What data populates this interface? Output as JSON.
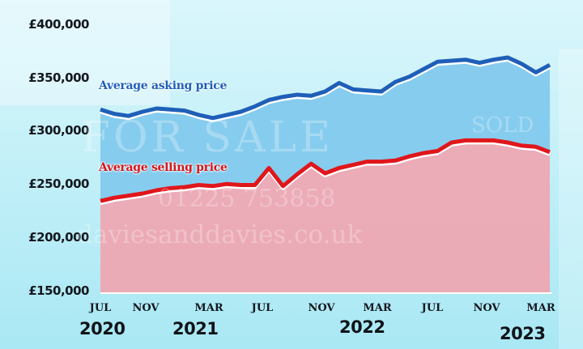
{
  "chart_data": {
    "type": "area",
    "title": "",
    "xlabel": "",
    "ylabel": "",
    "ylim": [
      150000,
      400000
    ],
    "yticks": [
      "£400,000",
      "£350,000",
      "£300,000",
      "£250,000",
      "£200,000",
      "£150,000"
    ],
    "ytick_values": [
      400000,
      350000,
      300000,
      250000,
      200000,
      150000
    ],
    "xticks": [
      {
        "label": "JUL",
        "index": 0
      },
      {
        "label": "NOV",
        "index": 4
      },
      {
        "label": "MAR",
        "index": 8
      },
      {
        "label": "JUL",
        "index": 12
      },
      {
        "label": "NOV",
        "index": 16
      },
      {
        "label": "MAR",
        "index": 20
      },
      {
        "label": "JUL",
        "index": 24
      },
      {
        "label": "NOV",
        "index": 28
      },
      {
        "label": "MAR",
        "index": 32
      }
    ],
    "year_labels": [
      {
        "label": "2020",
        "index": 0
      },
      {
        "label": "2021",
        "index": 8
      },
      {
        "label": "2022",
        "index": 20
      },
      {
        "label": "2023",
        "index": 32
      }
    ],
    "x": [
      "Jul 2020",
      "Aug 2020",
      "Sep 2020",
      "Oct 2020",
      "Nov 2020",
      "Dec 2020",
      "Jan 2021",
      "Feb 2021",
      "Mar 2021",
      "Apr 2021",
      "May 2021",
      "Jun 2021",
      "Jul 2021",
      "Aug 2021",
      "Sep 2021",
      "Oct 2021",
      "Nov 2021",
      "Dec 2021",
      "Jan 2022",
      "Feb 2022",
      "Mar 2022",
      "Apr 2022",
      "May 2022",
      "Jun 2022",
      "Jul 2022",
      "Aug 2022",
      "Sep 2022",
      "Oct 2022",
      "Nov 2022",
      "Dec 2022",
      "Jan 2023",
      "Feb 2023",
      "Mar 2023"
    ],
    "series": [
      {
        "name": "Average asking price",
        "color": "#1f5fb8",
        "fill": "#7ec8ec",
        "values": [
          322000,
          318000,
          316000,
          320000,
          323000,
          322000,
          321000,
          317000,
          314000,
          317000,
          320000,
          325000,
          331000,
          334000,
          336000,
          335000,
          339000,
          347000,
          341000,
          340000,
          339000,
          348000,
          353000,
          360000,
          367000,
          368000,
          369000,
          366000,
          369000,
          371000,
          365000,
          357000,
          364000
        ]
      },
      {
        "name": "Average selling price",
        "color": "#e0161b",
        "fill": "#f0a9b3",
        "values": [
          236000,
          239000,
          241000,
          243000,
          246000,
          248000,
          249000,
          251000,
          250000,
          252000,
          251000,
          251000,
          267000,
          250000,
          261000,
          271000,
          262000,
          267000,
          270000,
          273000,
          273000,
          274000,
          278000,
          281000,
          283000,
          291000,
          293000,
          293000,
          293000,
          291000,
          288000,
          287000,
          282000
        ]
      }
    ],
    "grid": false,
    "legend": "inline-labels"
  },
  "labels": {
    "asking": "Average asking price",
    "selling": "Average selling price"
  },
  "background_watermarks": {
    "for_sale": "FOR SALE",
    "phone": "01225 753858",
    "website": "daviesanddavies.co.uk",
    "sold": "SOLD"
  },
  "colors": {
    "asking_line": "#1f5fb8",
    "asking_fill": "#7ec8ec",
    "selling_line": "#e0161b",
    "selling_fill": "#f0a9b3",
    "axis_text": "#14181f"
  }
}
